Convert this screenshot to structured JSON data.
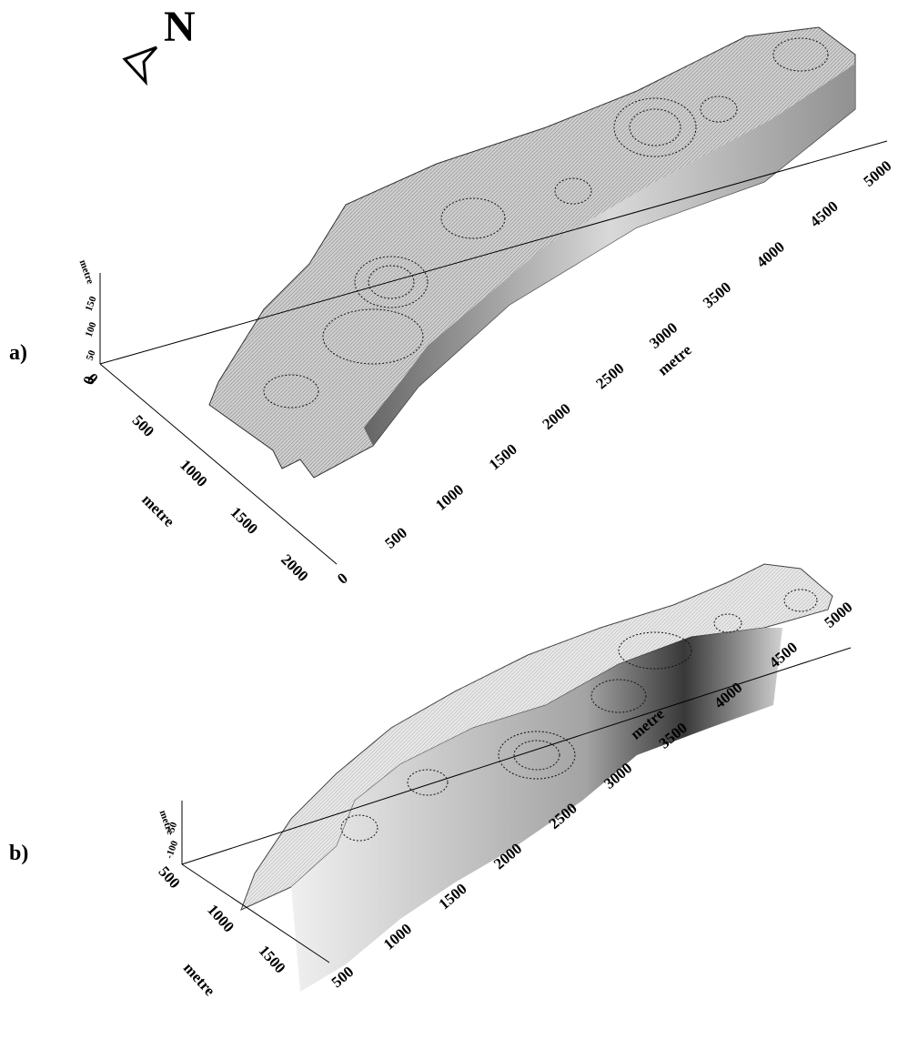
{
  "north": "N",
  "panels": [
    {
      "label": "a)",
      "x_axis": {
        "label": "metre",
        "ticks": [
          0,
          500,
          1000,
          1500,
          2000,
          2500,
          3000,
          3500,
          4000,
          4500,
          5000
        ]
      },
      "y_axis": {
        "label": "metre",
        "ticks": [
          0,
          500,
          1000,
          1500,
          2000
        ]
      },
      "z_axis": {
        "label": "metre",
        "ticks": [
          0,
          50,
          100,
          150
        ]
      }
    },
    {
      "label": "b)",
      "x_axis": {
        "label": "metre",
        "ticks": [
          500,
          1000,
          1500,
          2000,
          2500,
          3000,
          3500,
          4000,
          4500,
          5000
        ]
      },
      "y_axis": {
        "label": "metre",
        "ticks": [
          500,
          1000,
          1500
        ]
      },
      "z_axis": {
        "label": "metre",
        "ticks": [
          -50,
          -100
        ]
      }
    }
  ]
}
